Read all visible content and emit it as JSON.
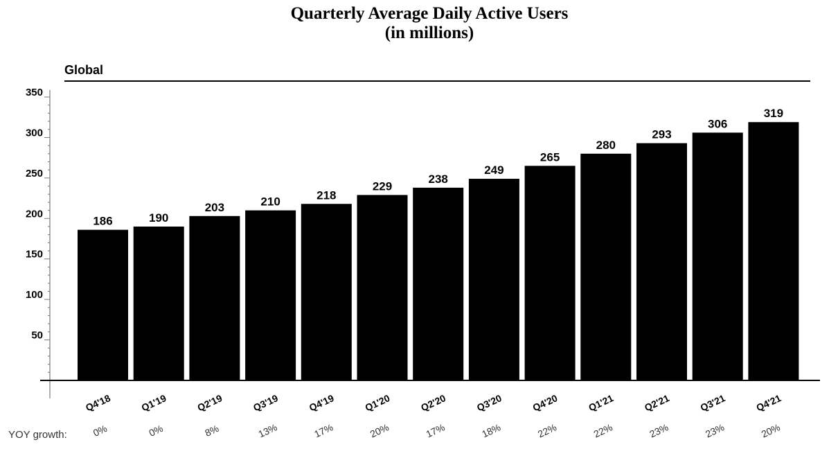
{
  "chart_data": {
    "type": "bar",
    "title": "Quarterly Average Daily Active Users",
    "subtitle": "(in millions)",
    "panel_label": "Global",
    "categories": [
      "Q4'18",
      "Q1'19",
      "Q2'19",
      "Q3'19",
      "Q4'19",
      "Q1'20",
      "Q2'20",
      "Q3'20",
      "Q4'20",
      "Q1'21",
      "Q2'21",
      "Q3'21",
      "Q4'21"
    ],
    "values": [
      186,
      190,
      203,
      210,
      218,
      229,
      238,
      249,
      265,
      280,
      293,
      306,
      319
    ],
    "yoy_caption": "YOY growth:",
    "yoy_growth": [
      "0%",
      "0%",
      "8%",
      "13%",
      "17%",
      "20%",
      "17%",
      "18%",
      "22%",
      "22%",
      "23%",
      "23%",
      "20%"
    ],
    "ylim": [
      0,
      350
    ],
    "yticks": [
      50,
      100,
      150,
      200,
      250,
      300,
      350
    ],
    "bar_color": "#000000",
    "grid": false,
    "legend": "none"
  }
}
